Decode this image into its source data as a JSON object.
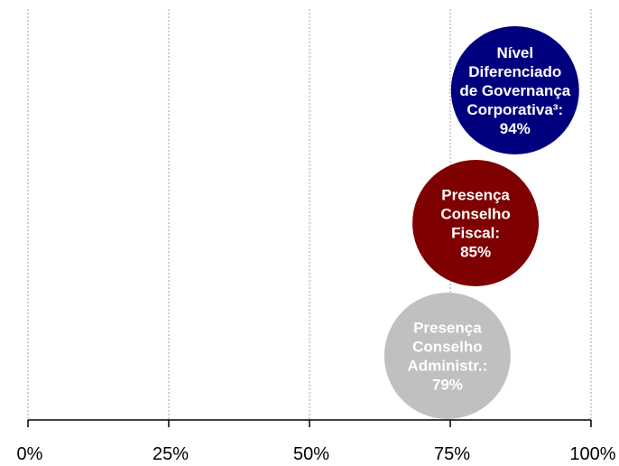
{
  "chart_data": {
    "type": "scatter",
    "title": "",
    "xlabel": "",
    "ylabel": "",
    "x_ticks": [
      {
        "value": 0,
        "label": "0%"
      },
      {
        "value": 25,
        "label": "25%"
      },
      {
        "value": 50,
        "label": "50%"
      },
      {
        "value": 75,
        "label": "75%"
      },
      {
        "value": 100,
        "label": "100%"
      }
    ],
    "xlim": [
      0,
      100
    ],
    "grid": true,
    "points": [
      {
        "label_lines": [
          "Nível",
          "Diferenciado",
          "de Governança",
          "Corporativa³:",
          "94%"
        ],
        "x": 86.5,
        "value": 94,
        "color": "#00007f"
      },
      {
        "label_lines": [
          "Presença",
          "Conselho",
          "Fiscal:",
          "85%"
        ],
        "x": 79.5,
        "value": 85,
        "color": "#7f0000"
      },
      {
        "label_lines": [
          "Presença",
          "Conselho",
          "Administr.:",
          "79%"
        ],
        "x": 74.5,
        "value": 79,
        "color": "#c0c0c0"
      }
    ]
  }
}
